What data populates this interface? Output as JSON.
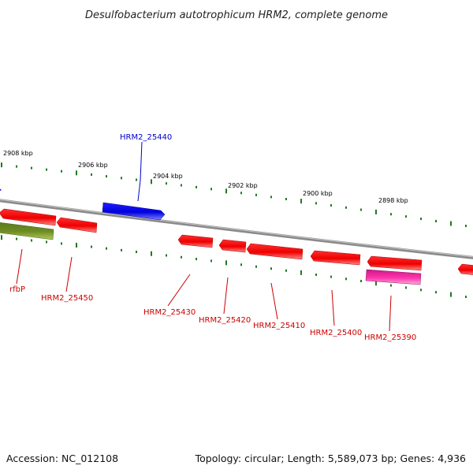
{
  "title": "Desulfobacterium autotrophicum HRM2, complete genome",
  "footer": {
    "accession": "Accession: NC_012108",
    "summary": "Topology: circular; Length: 5,589,073 bp; Genes: 4,936"
  },
  "colors": {
    "backbone": "#8a8a8a",
    "tick": "#1f7a1f",
    "forward_gene": "#0000e6",
    "reverse_gene": "#ff0000",
    "other_gene": "#6e8c22",
    "highlight_gene": "#ff33aa",
    "label_blue": "#0000cc",
    "label_red": "#cc0000"
  },
  "scale_labels": [
    "2908 kbp",
    "2906 kbp",
    "2904 kbp",
    "2902 kbp",
    "2900 kbp",
    "2898 kbp"
  ],
  "forward_genes": [
    {
      "label": "HRM2_25440",
      "color": "#0000e6"
    }
  ],
  "reverse_genes": [
    {
      "label": "",
      "color": "#ff0000"
    },
    {
      "label": "rfbP",
      "color": "#6e8c22"
    },
    {
      "label": "HRM2_25450",
      "color": "#ff0000"
    },
    {
      "label": "HRM2_25430",
      "color": "#ff0000"
    },
    {
      "label": "HRM2_25420",
      "color": "#ff0000"
    },
    {
      "label": "HRM2_25410",
      "color": "#ff0000"
    },
    {
      "label": "HRM2_25400",
      "color": "#ff0000"
    },
    {
      "label": "HRM2_25390",
      "color": "#ff0000"
    },
    {
      "label": "",
      "color": "#ff33aa"
    },
    {
      "label": "",
      "color": "#ff0000"
    }
  ]
}
